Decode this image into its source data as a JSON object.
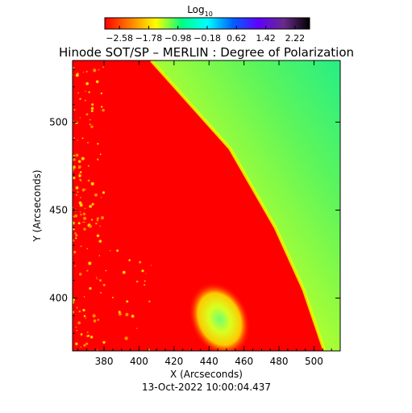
{
  "chart_data": {
    "type": "heatmap",
    "title": "Hinode SOT/SP – MERLIN : Degree of Polarization",
    "xlabel": "X (Arcseconds)",
    "ylabel": "Y (Arcseconds)",
    "timestamp": "13-Oct-2022 10:00:04.437",
    "xlim": [
      362,
      515
    ],
    "ylim": [
      370,
      535
    ],
    "x_ticks": [
      380,
      400,
      420,
      440,
      460,
      480,
      500
    ],
    "y_ticks": [
      400,
      450,
      500
    ],
    "colorbar": {
      "title": "Log",
      "title_subscript": "10",
      "scale": "log10",
      "range": [
        -2.98,
        2.62
      ],
      "tick_values": [
        -2.58,
        -1.78,
        -0.98,
        -0.18,
        0.62,
        1.42,
        2.22
      ],
      "tick_labels": [
        "−2.58",
        "−1.78",
        "−0.98",
        "−0.18",
        "0.62",
        "1.42",
        "2.22"
      ],
      "colormap": [
        "#ff0000",
        "#ff8000",
        "#ffff00",
        "#00ff80",
        "#00ffff",
        "#0060ff",
        "#6000ff",
        "#6a2a8a",
        "#000000"
      ]
    },
    "limb": {
      "description": "solar limb, disk on left (low polarization), off-limb on right (high polarization)",
      "points": [
        [
          407,
          535
        ],
        [
          452,
          485
        ],
        [
          478,
          440
        ],
        [
          494,
          405
        ],
        [
          506,
          370
        ]
      ]
    },
    "regions": [
      {
        "name": "disk",
        "log10_value": -2.5
      },
      {
        "name": "limb_edge",
        "log10_value": -1.4
      },
      {
        "name": "off_limb_low",
        "log10_value": -1.1
      },
      {
        "name": "off_limb_high",
        "log10_value": -0.55
      },
      {
        "name": "plage_patch",
        "center": [
          446,
          388
        ],
        "log10_value": -1.0
      }
    ]
  }
}
